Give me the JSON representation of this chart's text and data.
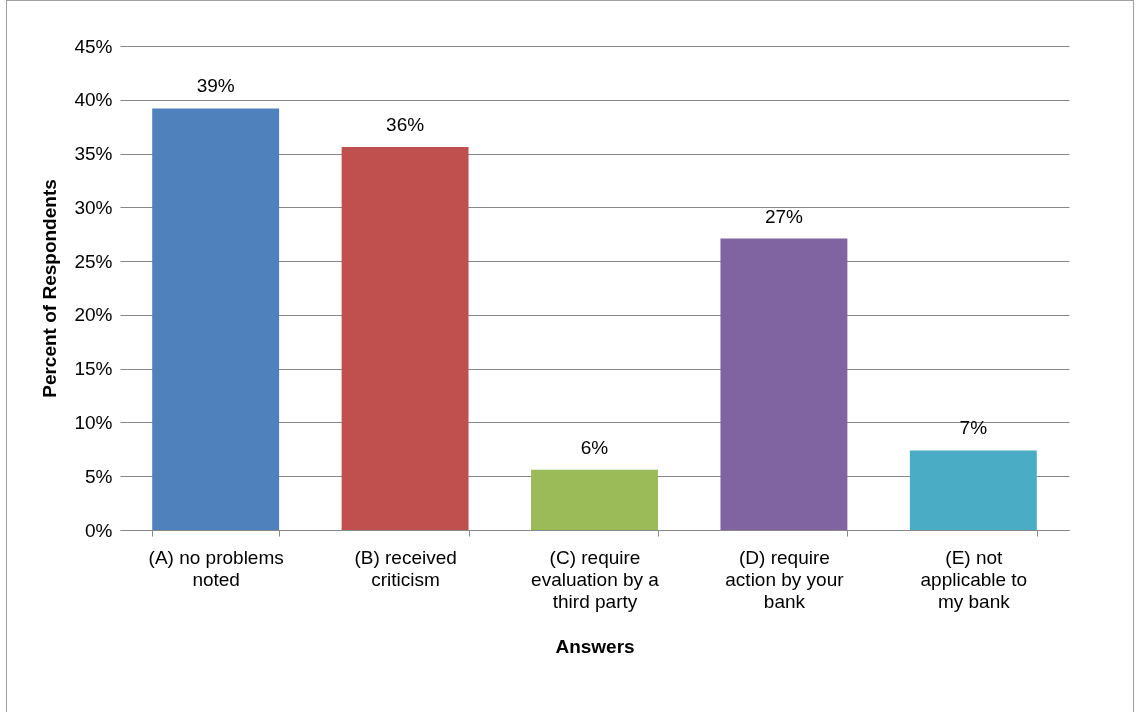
{
  "chart_data": {
    "type": "bar",
    "categories": [
      "(A) no problems noted",
      "(B) received criticism",
      "(C) require evaluation by a third party",
      "(D) require action by your bank",
      "(E) not applicable to my bank"
    ],
    "values": [
      39.2,
      35.6,
      5.6,
      27.1,
      7.4
    ],
    "colors": [
      "#4f81bd",
      "#c0504d",
      "#9bbb59",
      "#8064a2",
      "#4bacc6"
    ],
    "value_labels": [
      "39%",
      "36%",
      "6%",
      "27%",
      "7%"
    ],
    "xlabel": "Answers",
    "ylabel": "Percent of Respondents",
    "ylim": [
      0,
      45
    ],
    "yticks": [
      {
        "value": 0,
        "label": "0%"
      },
      {
        "value": 5,
        "label": "5%"
      },
      {
        "value": 10,
        "label": "10%"
      },
      {
        "value": 15,
        "label": "15%"
      },
      {
        "value": 20,
        "label": "20%"
      },
      {
        "value": 25,
        "label": "25%"
      },
      {
        "value": 30,
        "label": "30%"
      },
      {
        "value": 35,
        "label": "35%"
      },
      {
        "value": 40,
        "label": "40%"
      },
      {
        "value": 45,
        "label": "45%"
      }
    ],
    "grid": "y"
  }
}
